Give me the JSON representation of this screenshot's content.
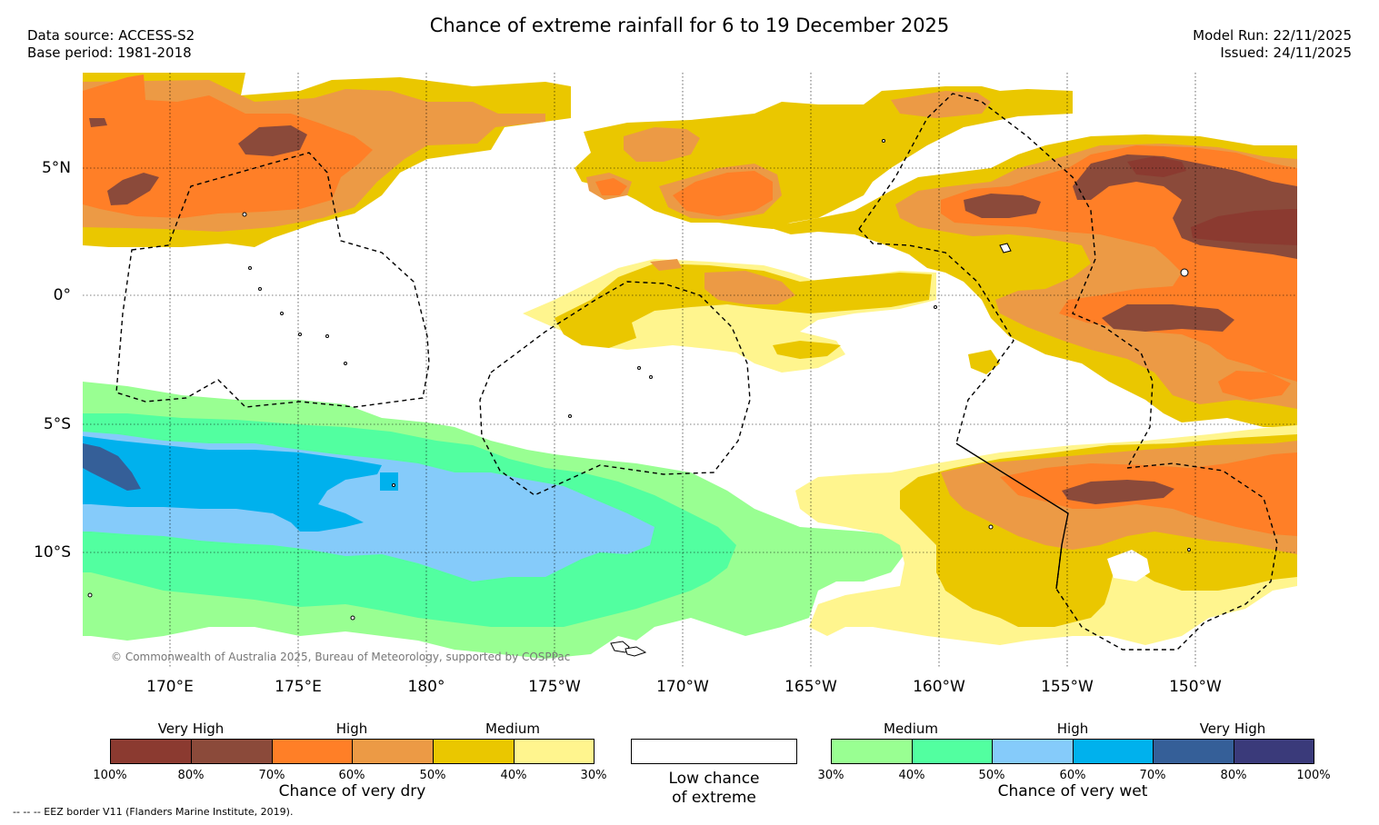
{
  "header": {
    "title": "Chance of extreme rainfall for 6 to 19 December 2025",
    "data_source": "Data source: ACCESS-S2",
    "base_period": "Base period: 1981-2018",
    "model_run": "Model Run: 22/11/2025",
    "issued": "Issued: 24/11/2025"
  },
  "map": {
    "lat_labels": [
      "5°N",
      "0°",
      "5°S",
      "10°S"
    ],
    "lon_labels": [
      "170°E",
      "175°E",
      "180°",
      "175°W",
      "170°W",
      "165°W",
      "160°W",
      "155°W",
      "150°W"
    ],
    "copyright": "© Commonwealth of Australia 2025, Bureau of Meteorology, supported by COSPPac"
  },
  "legend_dry": {
    "categories": [
      "Very High",
      "High",
      "Medium"
    ],
    "percentages": [
      "100%",
      "80%",
      "70%",
      "60%",
      "50%",
      "40%",
      "30%"
    ],
    "colors": [
      "#8b3a30",
      "#8b4a3a",
      "#ff7f27",
      "#ec9a45",
      "#eac700",
      "#fff58e"
    ],
    "title": "Chance of very dry"
  },
  "legend_none": {
    "line1": "Low chance",
    "line2": "of extreme"
  },
  "legend_wet": {
    "categories": [
      "Medium",
      "High",
      "Very High"
    ],
    "percentages": [
      "30%",
      "40%",
      "50%",
      "60%",
      "70%",
      "80%",
      "100%"
    ],
    "colors": [
      "#99ff92",
      "#52ffa0",
      "#85cbfa",
      "#00b1ed",
      "#355f98",
      "#3a3a7a"
    ],
    "title": "Chance of very wet"
  },
  "footnote": "-- -- -- EEZ border V11 (Flanders Marine Institute, 2019)."
}
